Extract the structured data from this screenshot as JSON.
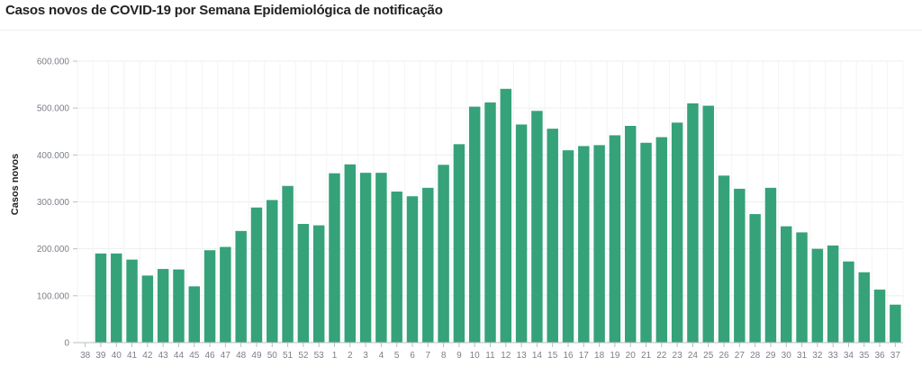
{
  "title": "Casos novos de COVID-19 por Semana Epidemiológica de notificação",
  "chart_data": {
    "type": "bar",
    "title": "Casos novos de COVID-19 por Semana Epidemiológica de notificação",
    "xlabel": "",
    "ylabel": "Casos novos",
    "ylim": [
      0,
      600000
    ],
    "yticks": [
      0,
      100000,
      200000,
      300000,
      400000,
      500000,
      600000
    ],
    "ytick_labels": [
      "0",
      "100.000",
      "200.000",
      "300.000",
      "400.000",
      "500.000",
      "600.000"
    ],
    "grid": true,
    "bar_color": "#35a27a",
    "categories": [
      "38",
      "39",
      "40",
      "41",
      "42",
      "43",
      "44",
      "45",
      "46",
      "47",
      "48",
      "49",
      "50",
      "51",
      "52",
      "53",
      "1",
      "2",
      "3",
      "4",
      "5",
      "6",
      "7",
      "8",
      "9",
      "10",
      "11",
      "12",
      "13",
      "14",
      "15",
      "16",
      "17",
      "18",
      "19",
      "20",
      "21",
      "22",
      "23",
      "24",
      "25",
      "26",
      "27",
      "28",
      "29",
      "30",
      "31",
      "32",
      "33",
      "34",
      "35",
      "36",
      "37"
    ],
    "values": [
      0,
      190000,
      190000,
      177000,
      143000,
      157000,
      156000,
      120000,
      197000,
      204000,
      238000,
      288000,
      304000,
      334000,
      253000,
      250000,
      361000,
      380000,
      362000,
      362000,
      322000,
      312000,
      330000,
      379000,
      423000,
      503000,
      512000,
      541000,
      465000,
      494000,
      456000,
      410000,
      419000,
      421000,
      442000,
      462000,
      426000,
      438000,
      469000,
      510000,
      505000,
      356000,
      328000,
      274000,
      330000,
      248000,
      235000,
      200000,
      207000,
      173000,
      150000,
      113000,
      81000
    ]
  }
}
